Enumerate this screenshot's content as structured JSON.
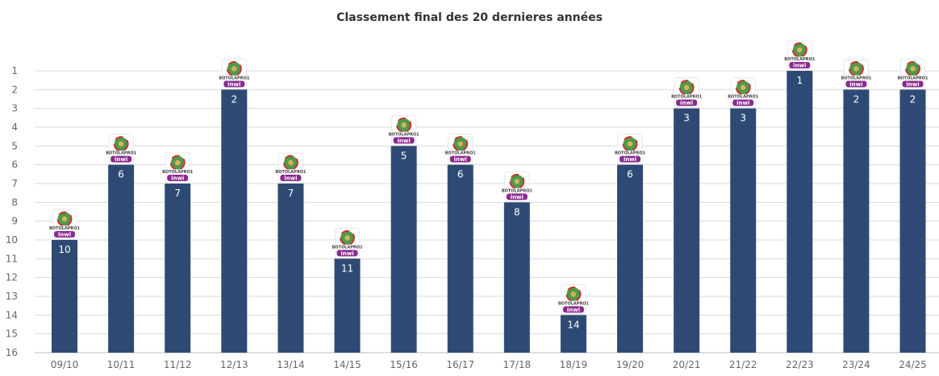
{
  "chart_data": {
    "type": "bar",
    "title": "Classement final des 20 dernieres années",
    "categories": [
      "09/10",
      "10/11",
      "11/12",
      "12/13",
      "13/14",
      "14/15",
      "15/16",
      "16/17",
      "17/18",
      "18/19",
      "19/20",
      "20/21",
      "21/22",
      "22/23",
      "23/24",
      "24/25"
    ],
    "values": [
      10,
      6,
      7,
      2,
      7,
      11,
      5,
      6,
      8,
      14,
      6,
      3,
      3,
      1,
      2,
      2
    ],
    "ylim": [
      1,
      16
    ],
    "y_ticks": [
      "1",
      "2",
      "3",
      "4",
      "5",
      "6",
      "7",
      "8",
      "9",
      "10",
      "11",
      "12",
      "13",
      "14",
      "15",
      "16"
    ],
    "y_reversed": true,
    "grid": true,
    "bar_color": "#2e4a74",
    "grid_color": "#d9d9d9",
    "logo": {
      "name": "league-logo-icon",
      "caption": "BOTOLAPRO1",
      "word": "inwi"
    }
  }
}
